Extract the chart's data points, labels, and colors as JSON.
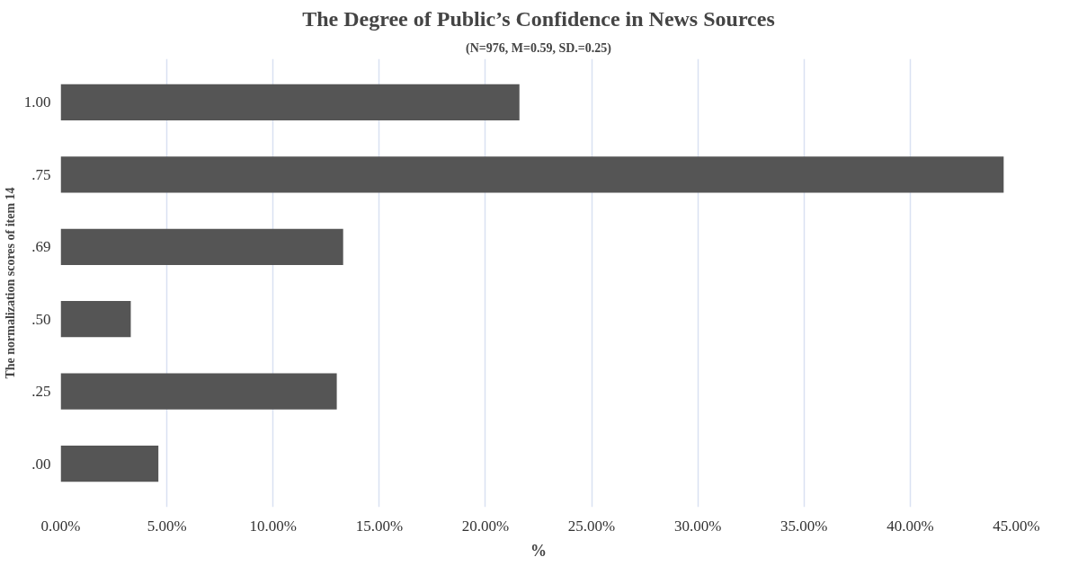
{
  "chart_data": {
    "type": "bar",
    "orientation": "horizontal",
    "title": "The Degree of Public’s Confidence in News Sources",
    "subtitle": "(N=976, M=0.59, SD.=0.25)",
    "xlabel": "%",
    "ylabel": "The normalization scores of item 14",
    "categories": [
      "1.00",
      ".75",
      ".69",
      ".50",
      ".25",
      ".00"
    ],
    "values": [
      21.6,
      44.4,
      13.3,
      3.3,
      13.0,
      4.6
    ],
    "color": "#555555",
    "xlim": [
      0,
      45
    ],
    "xticks": [
      {
        "value": 0,
        "label": "0.00%"
      },
      {
        "value": 5,
        "label": "5.00%"
      },
      {
        "value": 10,
        "label": "10.00%"
      },
      {
        "value": 15,
        "label": "15.00%"
      },
      {
        "value": 20,
        "label": "20.00%"
      },
      {
        "value": 25,
        "label": "25.00%"
      },
      {
        "value": 30,
        "label": "30.00%"
      },
      {
        "value": 35,
        "label": "35.00%"
      },
      {
        "value": 40,
        "label": "40.00%"
      },
      {
        "value": 45,
        "label": "45.00%"
      }
    ],
    "grid": "x"
  }
}
